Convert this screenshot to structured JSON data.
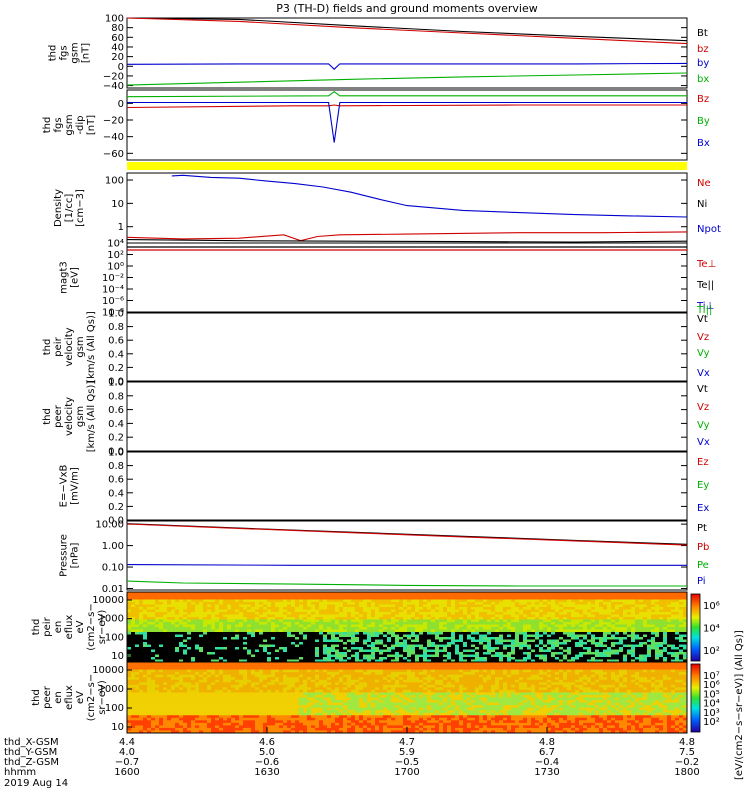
{
  "title": "P3 (TH-D) fields and ground moments overview",
  "chart_data": [
    {
      "id": "fgs",
      "type": "line",
      "ylabel": [
        "thd",
        "fgs",
        "gsm",
        "[nT]"
      ],
      "ylim": [
        -45,
        100
      ],
      "ticks": [
        100,
        80,
        60,
        40,
        20,
        0,
        -20,
        -40
      ],
      "tick_labels": [
        "100",
        "80",
        "60",
        "40",
        "20",
        "0",
        "−20",
        "−40"
      ],
      "series": [
        {
          "name": "Bt",
          "color": "#000000",
          "x": [
            0,
            0.2,
            0.4,
            0.6,
            0.8,
            1.0
          ],
          "values": [
            118,
            97,
            84,
            72,
            62,
            53
          ]
        },
        {
          "name": "bz",
          "color": "#d00000",
          "x": [
            0,
            0.2,
            0.4,
            0.6,
            0.8,
            1.0
          ],
          "values": [
            110,
            93,
            80,
            69,
            58,
            47
          ]
        },
        {
          "name": "by",
          "color": "#0000cc",
          "x": [
            0,
            0.2,
            0.36,
            0.37,
            0.38,
            0.6,
            0.8,
            1.0
          ],
          "values": [
            4,
            5,
            5,
            -6,
            5,
            5,
            5,
            6
          ]
        },
        {
          "name": "bx",
          "color": "#00b000",
          "x": [
            0,
            0.2,
            0.4,
            0.6,
            0.8,
            1.0
          ],
          "values": [
            -39,
            -33,
            -27,
            -22,
            -18,
            -14
          ]
        }
      ]
    },
    {
      "id": "fgs_dsl",
      "type": "line",
      "ylabel": [
        "thd",
        "fgs",
        "gsm",
        "-dip"
      ],
      "ylabel_unit": "[nT]",
      "ylim": [
        -68,
        16
      ],
      "ticks": [
        0,
        -20,
        -40,
        -60
      ],
      "tick_labels": [
        "0",
        "−20",
        "−40",
        "−60"
      ],
      "series": [
        {
          "name": "Bz",
          "color": "#d00000",
          "x": [
            0,
            0.3,
            0.36,
            0.37,
            0.38,
            0.7,
            1.0
          ],
          "values": [
            -5,
            -3,
            -3,
            -2,
            -3,
            -2,
            -2
          ]
        },
        {
          "name": "By",
          "color": "#00b000",
          "x": [
            0,
            0.36,
            0.37,
            0.38,
            1.0
          ],
          "values": [
            8,
            9,
            14,
            9,
            9
          ]
        },
        {
          "name": "Bx",
          "color": "#0000cc",
          "x": [
            0,
            0.36,
            0.37,
            0.38,
            1.0
          ],
          "values": [
            1,
            1,
            -47,
            1,
            1
          ]
        }
      ]
    },
    {
      "id": "density",
      "type": "line",
      "scale": "log",
      "ylabel": [
        "Density",
        "[1/cc]",
        "[cm−3]"
      ],
      "ylim": [
        0.2,
        200
      ],
      "ticks": [
        100,
        10,
        1
      ],
      "tick_labels": [
        "100",
        "10",
        "1"
      ],
      "series": [
        {
          "name": "Ne",
          "color": "#d00000",
          "x": [
            0,
            0.1,
            0.2,
            0.28,
            0.31,
            0.34,
            0.38,
            0.5,
            0.7,
            0.85,
            1.0
          ],
          "values": [
            0.35,
            0.3,
            0.32,
            0.45,
            0.25,
            0.38,
            0.45,
            0.48,
            0.55,
            0.55,
            0.6
          ]
        },
        {
          "name": "Ni",
          "color": "#000000",
          "x": [
            0,
            0.2,
            0.4,
            0.6,
            0.8,
            1.0
          ],
          "values": [
            0.28,
            0.25,
            0.24,
            0.23,
            0.22,
            0.24
          ]
        },
        {
          "name": "Npot",
          "color": "#0000cc",
          "x": [
            0.08,
            0.1,
            0.15,
            0.2,
            0.25,
            0.3,
            0.35,
            0.4,
            0.45,
            0.5,
            0.6,
            0.7,
            0.8,
            0.9,
            1.0
          ],
          "values": [
            150,
            160,
            130,
            120,
            90,
            70,
            50,
            30,
            15,
            8,
            5,
            4,
            3.3,
            2.9,
            2.6
          ]
        }
      ]
    },
    {
      "id": "temperature",
      "type": "line",
      "scale": "log",
      "ylabel": [
        "magt3",
        "[eV]"
      ],
      "ylim_label": "10⁻⁸ to 10⁴",
      "tick_labels": [
        "10⁴",
        "10²",
        "10⁰",
        "10⁻²",
        "10⁻⁴",
        "10⁻⁶",
        "10⁻⁸"
      ],
      "series": [
        {
          "name": "Te⊥",
          "color": "#d00000"
        },
        {
          "name": "Te||",
          "color": "#000000"
        },
        {
          "name": "Ti⊥",
          "color": "#0000cc"
        },
        {
          "name": "Ti||",
          "color": "#00b000"
        }
      ]
    },
    {
      "id": "peir_velocity",
      "type": "line",
      "ylabel": [
        "thd",
        "peir",
        "velocity",
        "gsm",
        "[km/s (All Qs)]"
      ],
      "ylim": [
        0,
        1
      ],
      "tick_labels": [
        "1.0",
        "0.8",
        "0.6",
        "0.4",
        "0.2",
        "0.0"
      ],
      "series": [
        {
          "name": "Vt",
          "color": "#000000"
        },
        {
          "name": "Vz",
          "color": "#d00000"
        },
        {
          "name": "Vy",
          "color": "#00b000"
        },
        {
          "name": "Vx",
          "color": "#0000cc"
        }
      ]
    },
    {
      "id": "peer_velocity",
      "type": "line",
      "ylabel": [
        "thd",
        "peer",
        "velocity",
        "gsm",
        "[km/s (All Qs)]"
      ],
      "ylim": [
        0,
        1
      ],
      "tick_labels": [
        "1.0",
        "0.8",
        "0.6",
        "0.4",
        "0.2",
        "0.0"
      ],
      "series": [
        {
          "name": "Vt",
          "color": "#000000"
        },
        {
          "name": "Vz",
          "color": "#d00000"
        },
        {
          "name": "Vy",
          "color": "#00b000"
        },
        {
          "name": "Vx",
          "color": "#0000cc"
        }
      ]
    },
    {
      "id": "efield",
      "type": "line",
      "ylabel": [
        "E=−VxB",
        "[mV/m]"
      ],
      "ylim": [
        0,
        1
      ],
      "tick_labels": [
        "1.0",
        "0.8",
        "0.6",
        "0.4",
        "0.2",
        "0.0"
      ],
      "series": [
        {
          "name": "Ez",
          "color": "#d00000"
        },
        {
          "name": "Ey",
          "color": "#00b000"
        },
        {
          "name": "Ex",
          "color": "#0000cc"
        }
      ]
    },
    {
      "id": "pressure",
      "type": "line",
      "scale": "log",
      "ylabel": [
        "Pressure",
        "[nPa]"
      ],
      "ylim": [
        0.0085,
        14
      ],
      "ticks": [
        10,
        1,
        0.1,
        0.01
      ],
      "tick_labels": [
        "10.00",
        "1.00",
        "0.10",
        "0.01"
      ],
      "series": [
        {
          "name": "Pt",
          "color": "#000000",
          "x": [
            0,
            0.2,
            0.4,
            0.6,
            0.8,
            1.0
          ],
          "values": [
            10.5,
            6.5,
            4.2,
            2.7,
            1.75,
            1.15
          ]
        },
        {
          "name": "Pb",
          "color": "#d00000",
          "x": [
            0,
            0.2,
            0.4,
            0.6,
            0.8,
            1.0
          ],
          "values": [
            10.2,
            6.3,
            4.0,
            2.55,
            1.65,
            1.05
          ]
        },
        {
          "name": "Pe",
          "color": "#00b000",
          "x": [
            0,
            0.1,
            0.3,
            0.5,
            0.7,
            1.0
          ],
          "values": [
            0.022,
            0.018,
            0.016,
            0.014,
            0.013,
            0.013
          ]
        },
        {
          "name": "Pi",
          "color": "#0000cc",
          "x": [
            0,
            0.3,
            0.6,
            1.0
          ],
          "values": [
            0.13,
            0.12,
            0.12,
            0.12
          ]
        }
      ]
    },
    {
      "id": "peir_eflux",
      "type": "heatmap",
      "ylabel": [
        "thd",
        "peir",
        "en",
        "eflux",
        "eV",
        "(cm2−s−",
        "sr−eV)"
      ],
      "tick_labels": [
        "10000",
        "1000",
        "100",
        "10"
      ],
      "colorbar_ticks": [
        "10⁶",
        "10⁴",
        "10²"
      ]
    },
    {
      "id": "peer_eflux",
      "type": "heatmap",
      "ylabel": [
        "thd",
        "peer",
        "en",
        "eflux",
        "eV",
        "(cm2−s−",
        "sr−eV)"
      ],
      "tick_labels": [
        "10000",
        "1000",
        "100",
        "10"
      ],
      "colorbar_ticks": [
        "10⁷",
        "10⁶",
        "10⁵",
        "10⁴",
        "10³",
        "10²"
      ]
    }
  ],
  "colorbar_label": "[eV/(cm2−s−sr−eV)] (All Qs)]",
  "x_axis": {
    "rows": [
      {
        "name": "thd_X-GSM",
        "values": [
          "4.4",
          "4.6",
          "4.7",
          "4.8",
          "4.8"
        ]
      },
      {
        "name": "thd_Y-GSM",
        "values": [
          "4.0",
          "5.0",
          "5.9",
          "6.7",
          "7.5"
        ]
      },
      {
        "name": "thd_Z-GSM",
        "values": [
          "−0.7",
          "−0.6",
          "−0.5",
          "−0.4",
          "−0.2"
        ]
      },
      {
        "name": "hhmm",
        "values": [
          "1600",
          "1630",
          "1700",
          "1730",
          "1800"
        ]
      }
    ],
    "date": "2019 Aug 14"
  }
}
